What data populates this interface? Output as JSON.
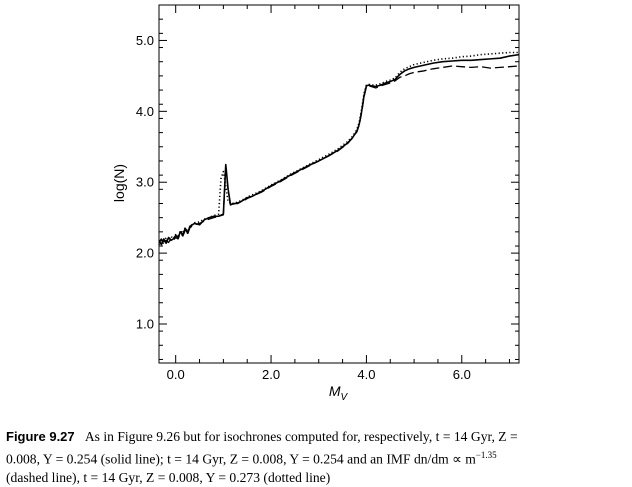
{
  "chart_data": {
    "type": "line",
    "title": "",
    "xlabel": "M",
    "xlabel_sub": "V",
    "ylabel": "log(N)",
    "xlim": [
      -0.35,
      7.2
    ],
    "ylim": [
      0.45,
      5.5
    ],
    "xticks": [
      0.0,
      2.0,
      4.0,
      6.0
    ],
    "xtick_labels": [
      "0.0",
      "2.0",
      "4.0",
      "6.0"
    ],
    "yticks": [
      1.0,
      2.0,
      3.0,
      4.0,
      5.0
    ],
    "ytick_labels": [
      "1.0",
      "2.0",
      "3.0",
      "4.0",
      "5.0"
    ],
    "grid": false,
    "series": [
      {
        "style": "solid",
        "x": [
          -0.35,
          -0.3,
          -0.25,
          -0.2,
          -0.15,
          -0.1,
          -0.05,
          0.0,
          0.05,
          0.1,
          0.15,
          0.2,
          0.25,
          0.3,
          0.4,
          0.5,
          0.6,
          0.7,
          0.8,
          0.9,
          1.0,
          1.05,
          1.1,
          1.15,
          1.2,
          1.3,
          1.4,
          1.5,
          1.6,
          1.8,
          2.0,
          2.2,
          2.4,
          2.6,
          2.8,
          3.0,
          3.2,
          3.4,
          3.6,
          3.7,
          3.8,
          3.85,
          3.9,
          3.95,
          4.0,
          4.05,
          4.1,
          4.2,
          4.3,
          4.4,
          4.5,
          4.6,
          4.7,
          4.8,
          4.9,
          5.0,
          5.2,
          5.4,
          5.6,
          5.8,
          6.0,
          6.2,
          6.4,
          6.6,
          6.8,
          7.0,
          7.2
        ],
        "y": [
          2.18,
          2.12,
          2.2,
          2.14,
          2.22,
          2.18,
          2.2,
          2.25,
          2.22,
          2.3,
          2.26,
          2.35,
          2.28,
          2.38,
          2.42,
          2.4,
          2.47,
          2.5,
          2.52,
          2.52,
          2.55,
          3.25,
          2.9,
          2.68,
          2.7,
          2.7,
          2.74,
          2.78,
          2.8,
          2.87,
          2.95,
          3.02,
          3.1,
          3.17,
          3.24,
          3.3,
          3.37,
          3.45,
          3.55,
          3.62,
          3.72,
          3.82,
          4.0,
          4.22,
          4.36,
          4.37,
          4.36,
          4.35,
          4.37,
          4.4,
          4.42,
          4.45,
          4.52,
          4.57,
          4.6,
          4.62,
          4.65,
          4.68,
          4.7,
          4.71,
          4.72,
          4.72,
          4.73,
          4.74,
          4.75,
          4.78,
          4.8
        ]
      },
      {
        "style": "dashed",
        "x": [
          -0.35,
          -0.3,
          -0.25,
          -0.2,
          -0.15,
          -0.1,
          -0.05,
          0.0,
          0.05,
          0.1,
          0.15,
          0.2,
          0.25,
          0.3,
          0.4,
          0.5,
          0.6,
          0.7,
          0.8,
          0.9,
          1.0,
          1.05,
          1.1,
          1.15,
          1.2,
          1.3,
          1.4,
          1.5,
          1.6,
          1.8,
          2.0,
          2.2,
          2.4,
          2.6,
          2.8,
          3.0,
          3.2,
          3.4,
          3.6,
          3.7,
          3.8,
          3.85,
          3.9,
          3.95,
          4.0,
          4.05,
          4.1,
          4.2,
          4.3,
          4.4,
          4.5,
          4.6,
          4.7,
          4.8,
          4.9,
          5.0,
          5.2,
          5.4,
          5.6,
          5.8,
          6.0,
          6.2,
          6.4,
          6.6,
          6.8,
          7.0,
          7.2
        ],
        "y": [
          2.16,
          2.2,
          2.12,
          2.18,
          2.15,
          2.2,
          2.18,
          2.22,
          2.2,
          2.28,
          2.24,
          2.32,
          2.27,
          2.36,
          2.4,
          2.42,
          2.45,
          2.48,
          2.5,
          2.52,
          2.54,
          3.22,
          2.88,
          2.7,
          2.69,
          2.71,
          2.73,
          2.77,
          2.8,
          2.86,
          2.94,
          3.01,
          3.09,
          3.16,
          3.23,
          3.3,
          3.37,
          3.44,
          3.54,
          3.62,
          3.71,
          3.81,
          3.98,
          4.2,
          4.35,
          4.36,
          4.35,
          4.33,
          4.36,
          4.38,
          4.4,
          4.43,
          4.48,
          4.5,
          4.53,
          4.55,
          4.57,
          4.6,
          4.62,
          4.64,
          4.63,
          4.62,
          4.63,
          4.61,
          4.62,
          4.63,
          4.64
        ]
      },
      {
        "style": "dotted",
        "x": [
          -0.35,
          -0.3,
          -0.25,
          -0.2,
          -0.15,
          -0.1,
          -0.05,
          0.0,
          0.05,
          0.1,
          0.15,
          0.2,
          0.25,
          0.3,
          0.4,
          0.5,
          0.6,
          0.7,
          0.8,
          0.9,
          0.95,
          1.0,
          1.05,
          1.1,
          1.2,
          1.3,
          1.4,
          1.5,
          1.6,
          1.8,
          2.0,
          2.2,
          2.4,
          2.6,
          2.8,
          3.0,
          3.2,
          3.4,
          3.6,
          3.7,
          3.8,
          3.85,
          3.9,
          3.95,
          4.0,
          4.05,
          4.1,
          4.2,
          4.3,
          4.4,
          4.5,
          4.6,
          4.7,
          4.8,
          4.9,
          5.0,
          5.2,
          5.4,
          5.6,
          5.8,
          6.0,
          6.2,
          6.4,
          6.6,
          6.8,
          7.0,
          7.2
        ],
        "y": [
          2.12,
          2.2,
          2.15,
          2.22,
          2.18,
          2.24,
          2.2,
          2.26,
          2.24,
          2.32,
          2.28,
          2.36,
          2.3,
          2.38,
          2.43,
          2.44,
          2.48,
          2.5,
          2.53,
          2.55,
          3.05,
          3.15,
          2.95,
          2.72,
          2.7,
          2.72,
          2.75,
          2.79,
          2.82,
          2.88,
          2.96,
          3.03,
          3.11,
          3.18,
          3.25,
          3.32,
          3.39,
          3.47,
          3.57,
          3.64,
          3.74,
          3.85,
          4.03,
          4.25,
          4.37,
          4.38,
          4.37,
          4.37,
          4.39,
          4.42,
          4.44,
          4.47,
          4.55,
          4.6,
          4.63,
          4.66,
          4.69,
          4.72,
          4.74,
          4.75,
          4.77,
          4.78,
          4.8,
          4.81,
          4.82,
          4.83,
          4.83
        ]
      }
    ]
  },
  "caption": {
    "label": "Figure 9.27",
    "line1": "As in Figure 9.26 but for isochrones computed for, respectively, t = 14 Gyr, Z =",
    "line2": "0.008, Y = 0.254 (solid line); t = 14 Gyr, Z = 0.008, Y = 0.254 and an IMF dn/dm ∝ m",
    "line2_sup": "−1.35",
    "line3": "(dashed line), t = 14 Gyr, Z = 0.008, Y = 0.273 (dotted line)"
  }
}
